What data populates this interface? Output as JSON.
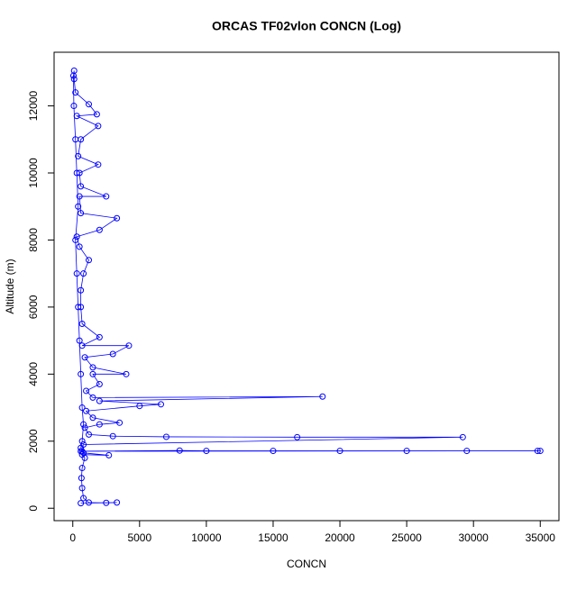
{
  "chart_data": {
    "type": "scatter",
    "title": "ORCAS TF02vlon CONCN (Log)",
    "xlabel": "CONCN",
    "ylabel": "Altitude (m)",
    "color": "#0000ff",
    "connect": true,
    "xlim": [
      -1400,
      36400
    ],
    "ylim": [
      -370,
      13600
    ],
    "xticks": [
      0,
      5000,
      10000,
      15000,
      20000,
      25000,
      30000,
      35000
    ],
    "yticks": [
      0,
      2000,
      4000,
      6000,
      8000,
      10000,
      12000
    ],
    "x": [
      600,
      3300,
      2500,
      1200,
      800,
      700,
      650,
      700,
      900,
      700,
      2700,
      800,
      700,
      34800,
      35000,
      29500,
      25000,
      20000,
      15000,
      10000,
      8000,
      600,
      800,
      29200,
      16800,
      7000,
      3000,
      1200,
      900,
      2000,
      3500,
      1500,
      1000,
      5000,
      6600,
      2000,
      18700,
      1500,
      1000,
      2000,
      1500,
      4000,
      1500,
      900,
      3000,
      4200,
      700,
      2000,
      700,
      600,
      600,
      800,
      1200,
      500,
      300,
      2000,
      3300,
      600,
      500,
      2500,
      600,
      500,
      1900,
      400,
      600,
      1900,
      300,
      1800,
      1200,
      200,
      100,
      100,
      50,
      80,
      200,
      300,
      400,
      200,
      300,
      400,
      500,
      600,
      700,
      800,
      700,
      600
    ],
    "y": [
      150,
      170,
      160,
      170,
      300,
      600,
      900,
      1200,
      1500,
      1600,
      1580,
      1650,
      1700,
      1710,
      1710,
      1710,
      1710,
      1710,
      1710,
      1710,
      1720,
      1700,
      1900,
      2120,
      2120,
      2130,
      2150,
      2200,
      2400,
      2500,
      2550,
      2700,
      2900,
      3050,
      3100,
      3200,
      3330,
      3300,
      3500,
      3700,
      4000,
      4000,
      4200,
      4500,
      4600,
      4850,
      4850,
      5100,
      5500,
      6000,
      6500,
      7000,
      7400,
      7800,
      8100,
      8300,
      8650,
      8800,
      9300,
      9300,
      9600,
      10000,
      10250,
      10500,
      11000,
      11400,
      11700,
      11750,
      12050,
      12400,
      12800,
      13050,
      12900,
      12000,
      11000,
      10000,
      9000,
      8000,
      7000,
      6000,
      5000,
      4000,
      3000,
      2500,
      2000,
      1800
    ]
  }
}
